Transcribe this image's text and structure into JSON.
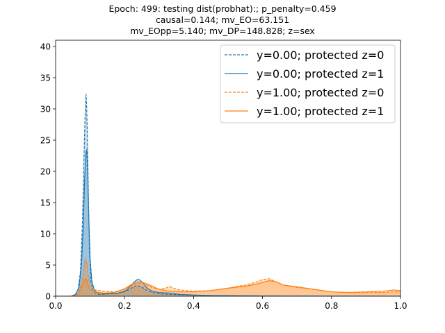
{
  "chart_data": {
    "type": "area",
    "title_lines": [
      "Epoch: 499: testing dist(probhat):; p_penalty=0.459",
      "causal=0.144; mv_EO=63.151",
      "mv_EOpp=5.140; mv_DP=148.828; z=sex"
    ],
    "xlabel": "",
    "ylabel": "",
    "xlim": [
      0.0,
      1.0
    ],
    "ylim": [
      0,
      41
    ],
    "xticks": [
      "0.0",
      "0.2",
      "0.4",
      "0.6",
      "0.8",
      "1.0"
    ],
    "yticks": [
      "0",
      "5",
      "10",
      "15",
      "20",
      "25",
      "30",
      "35",
      "40"
    ],
    "grid": false,
    "legend_position": "top-right",
    "colors": {
      "blue": "#1f77b4",
      "orange": "#ff7f0e"
    },
    "series": [
      {
        "name": "y=0.00; protected z=0",
        "color": "#1f77b4",
        "linestyle": "dashed",
        "x": [
          0.0,
          0.04,
          0.055,
          0.065,
          0.072,
          0.078,
          0.082,
          0.085,
          0.088,
          0.09,
          0.092,
          0.095,
          0.098,
          0.102,
          0.108,
          0.115,
          0.125,
          0.14,
          0.16,
          0.18,
          0.2,
          0.215,
          0.225,
          0.235,
          0.245,
          0.255,
          0.265,
          0.28,
          0.3,
          0.35,
          0.4,
          0.45,
          0.5,
          0.55,
          0.6,
          0.65,
          0.7,
          0.8,
          0.9,
          1.0
        ],
        "y": [
          0,
          0,
          0.2,
          1.0,
          4.0,
          12.0,
          22.0,
          28.0,
          32.4,
          30.5,
          26.0,
          16.0,
          7.5,
          2.5,
          0.9,
          0.5,
          0.3,
          0.3,
          0.4,
          0.5,
          0.7,
          1.1,
          1.5,
          1.7,
          1.6,
          1.3,
          0.9,
          0.6,
          0.4,
          0.25,
          0.15,
          0.1,
          0.08,
          0.06,
          0.05,
          0.04,
          0.03,
          0.02,
          0.01,
          0.0
        ]
      },
      {
        "name": "y=0.00; protected z=1",
        "color": "#1f77b4",
        "linestyle": "solid",
        "x": [
          0.0,
          0.045,
          0.058,
          0.068,
          0.075,
          0.08,
          0.084,
          0.087,
          0.09,
          0.093,
          0.096,
          0.1,
          0.105,
          0.112,
          0.12,
          0.14,
          0.16,
          0.18,
          0.2,
          0.21,
          0.22,
          0.23,
          0.238,
          0.245,
          0.255,
          0.265,
          0.28,
          0.3,
          0.33,
          0.36,
          0.4,
          0.45,
          0.5,
          0.6,
          0.7,
          0.8,
          0.9,
          1.0
        ],
        "y": [
          0,
          0,
          0.3,
          1.5,
          5.0,
          11.0,
          18.5,
          22.5,
          23.5,
          20.0,
          13.0,
          6.0,
          2.5,
          1.0,
          0.6,
          0.4,
          0.4,
          0.5,
          0.8,
          1.2,
          1.8,
          2.4,
          2.7,
          2.6,
          2.0,
          1.3,
          0.8,
          0.6,
          0.5,
          0.3,
          0.2,
          0.12,
          0.08,
          0.05,
          0.03,
          0.02,
          0.01,
          0.0
        ]
      },
      {
        "name": "y=1.00; protected z=0",
        "color": "#ff7f0e",
        "linestyle": "dashed",
        "x": [
          0.0,
          0.055,
          0.065,
          0.075,
          0.082,
          0.086,
          0.09,
          0.094,
          0.1,
          0.11,
          0.125,
          0.14,
          0.17,
          0.2,
          0.22,
          0.24,
          0.26,
          0.28,
          0.3,
          0.32,
          0.33,
          0.34,
          0.36,
          0.38,
          0.4,
          0.45,
          0.5,
          0.55,
          0.58,
          0.6,
          0.62,
          0.64,
          0.66,
          0.68,
          0.7,
          0.72,
          0.75,
          0.8,
          0.85,
          0.9,
          0.95,
          0.98,
          1.0
        ],
        "y": [
          0,
          0,
          0.5,
          2.0,
          4.5,
          6.0,
          5.5,
          3.5,
          1.8,
          1.1,
          0.9,
          0.8,
          0.7,
          1.1,
          1.7,
          2.1,
          1.9,
          1.4,
          1.1,
          1.3,
          1.6,
          1.3,
          1.0,
          0.9,
          0.8,
          0.9,
          1.3,
          1.8,
          2.2,
          2.7,
          2.8,
          2.3,
          1.8,
          1.6,
          1.4,
          1.3,
          1.1,
          0.7,
          0.6,
          0.6,
          0.6,
          0.7,
          0.7
        ]
      },
      {
        "name": "y=1.00; protected z=1",
        "color": "#ff7f0e",
        "linestyle": "solid",
        "x": [
          0.0,
          0.055,
          0.068,
          0.076,
          0.082,
          0.086,
          0.09,
          0.094,
          0.1,
          0.11,
          0.125,
          0.14,
          0.17,
          0.2,
          0.22,
          0.24,
          0.26,
          0.28,
          0.3,
          0.33,
          0.36,
          0.4,
          0.45,
          0.5,
          0.55,
          0.58,
          0.6,
          0.62,
          0.64,
          0.66,
          0.7,
          0.75,
          0.8,
          0.85,
          0.9,
          0.95,
          0.98,
          1.0
        ],
        "y": [
          0,
          0,
          0.5,
          1.5,
          2.4,
          2.8,
          2.6,
          1.8,
          1.1,
          0.8,
          0.6,
          0.5,
          0.6,
          1.2,
          1.9,
          2.3,
          2.1,
          1.6,
          1.1,
          0.8,
          0.7,
          0.7,
          0.9,
          1.3,
          1.6,
          1.9,
          2.2,
          2.5,
          2.3,
          1.8,
          1.5,
          1.1,
          0.7,
          0.6,
          0.7,
          0.8,
          1.0,
          0.9
        ]
      }
    ]
  }
}
